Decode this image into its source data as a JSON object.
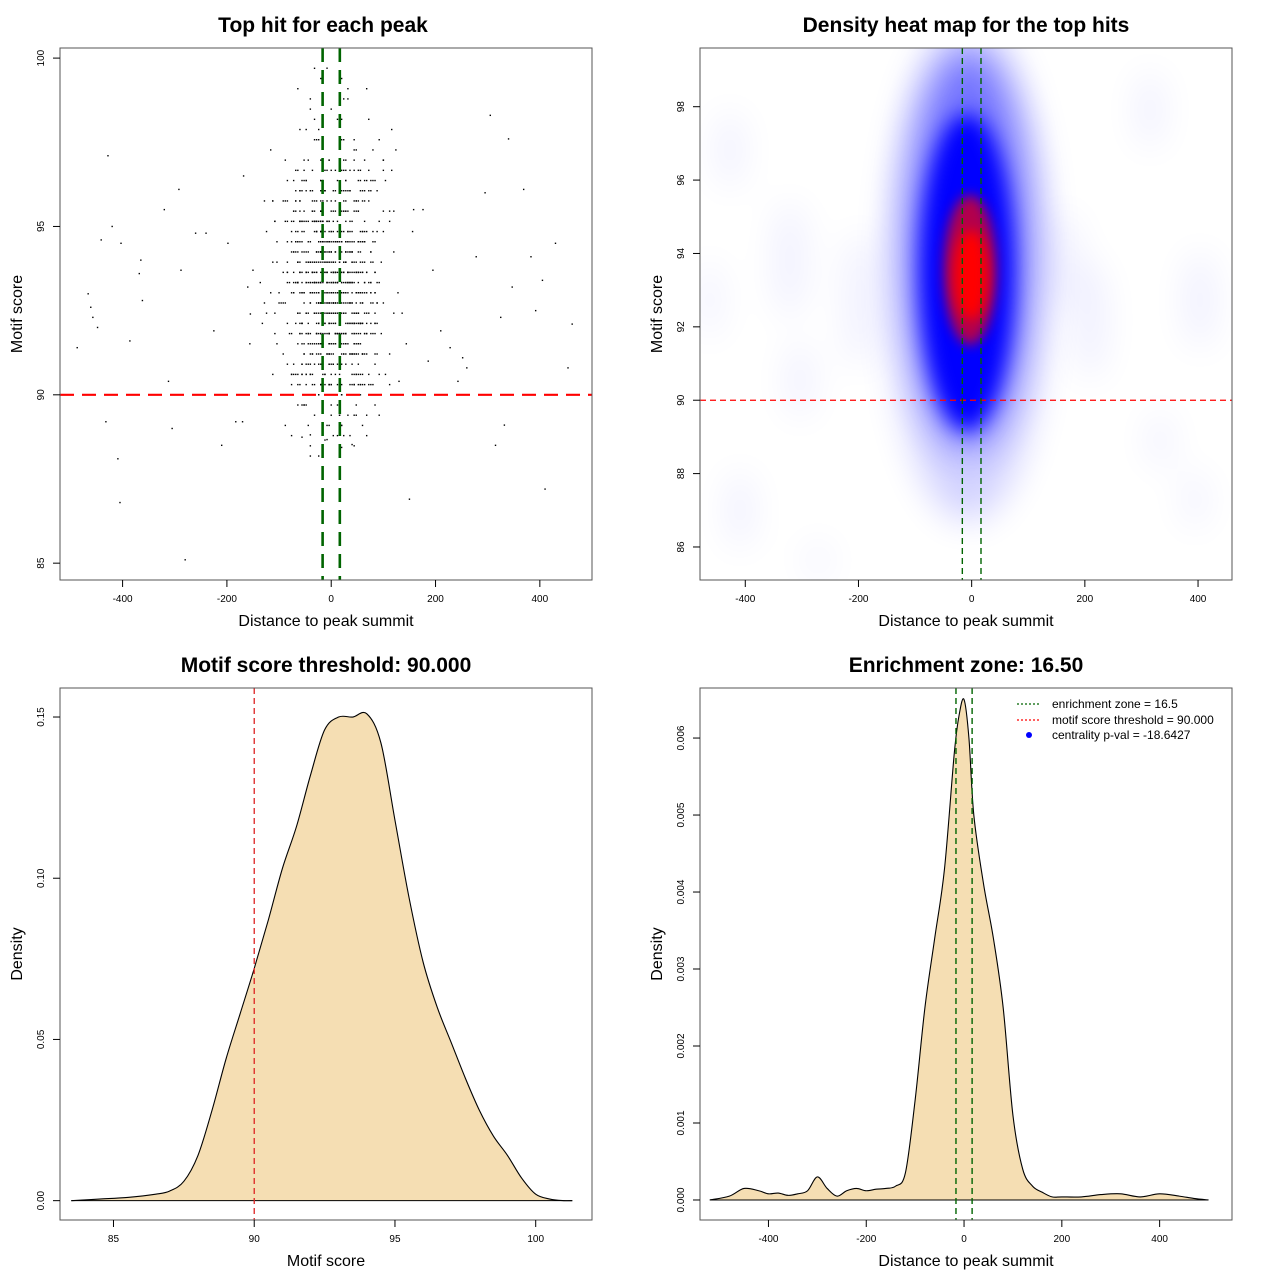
{
  "chart_data": [
    {
      "type": "scatter",
      "title": "Top hit for each peak",
      "xlabel": "Distance to peak summit",
      "ylabel": "Motif score",
      "xlim": [
        -520,
        500
      ],
      "ylim": [
        84.5,
        100.3
      ],
      "xticks": [
        "-400",
        "-200",
        "0",
        "200",
        "400"
      ],
      "yticks": [
        "85",
        "90",
        "95",
        "100"
      ],
      "hline": 90,
      "vlines": [
        -16.5,
        16.5
      ],
      "points_approx_count": 1100,
      "outlier_points": [
        [
          -487,
          91.4
        ],
        [
          -466,
          93
        ],
        [
          -461,
          92.6
        ],
        [
          -457,
          92.3
        ],
        [
          -448,
          92
        ],
        [
          -441,
          94.6
        ],
        [
          -432,
          89.2
        ],
        [
          -428,
          97.1
        ],
        [
          -420,
          95
        ],
        [
          -409,
          88.1
        ],
        [
          -405,
          86.8
        ],
        [
          -403,
          94.5
        ],
        [
          -386,
          91.6
        ],
        [
          -368,
          93.6
        ],
        [
          -365,
          94
        ],
        [
          -362,
          92.8
        ],
        [
          -320,
          95.5
        ],
        [
          -312,
          90.4
        ],
        [
          -305,
          89
        ],
        [
          -300,
          90
        ],
        [
          -292,
          96.1
        ],
        [
          -288,
          93.7
        ],
        [
          -280,
          85.1
        ],
        [
          -260,
          94.8
        ],
        [
          -240,
          94.8
        ],
        [
          -225,
          91.9
        ],
        [
          -210,
          88.5
        ],
        [
          -198,
          94.5
        ],
        [
          -183,
          89.2
        ],
        [
          -170,
          89.2
        ],
        [
          -168,
          96.5
        ],
        [
          -160,
          93.2
        ],
        [
          -155,
          92.4
        ],
        [
          -150,
          93.7
        ],
        [
          130,
          90.4
        ],
        [
          150,
          86.9
        ],
        [
          158,
          95.5
        ],
        [
          176,
          95.5
        ],
        [
          186,
          91
        ],
        [
          195,
          93.7
        ],
        [
          210,
          91.9
        ],
        [
          228,
          91.4
        ],
        [
          243,
          90.4
        ],
        [
          252,
          91.1
        ],
        [
          260,
          90.8
        ],
        [
          278,
          94.1
        ],
        [
          295,
          96
        ],
        [
          305,
          98.3
        ],
        [
          315,
          88.5
        ],
        [
          325,
          92.3
        ],
        [
          332,
          89.1
        ],
        [
          340,
          97.6
        ],
        [
          347,
          93.2
        ],
        [
          369,
          96.1
        ],
        [
          383,
          94.1
        ],
        [
          392,
          92.5
        ],
        [
          405,
          93.4
        ],
        [
          410,
          87.2
        ],
        [
          430,
          94.5
        ],
        [
          454,
          90.8
        ],
        [
          462,
          92.1
        ]
      ]
    },
    {
      "type": "heatmap",
      "title": "Density heat map for the top hits",
      "xlabel": "Distance to peak summit",
      "ylabel": "Motif score",
      "xlim": [
        -480,
        460
      ],
      "ylim": [
        85.1,
        99.6
      ],
      "xticks": [
        "-400",
        "-200",
        "0",
        "200",
        "400"
      ],
      "yticks": [
        "86",
        "88",
        "90",
        "92",
        "94",
        "96",
        "98"
      ],
      "hline": 90,
      "vlines": [
        -16.5,
        16.5
      ],
      "colors": {
        "low": "#ffffff",
        "mid": "#0000ff",
        "high": "#ff0000"
      },
      "density_peak": {
        "x": 5,
        "y": 93.3
      }
    },
    {
      "type": "area",
      "title": "Motif score threshold: 90.000",
      "xlabel": "Motif score",
      "ylabel": "Density",
      "xlim": [
        83.1,
        102.0
      ],
      "ylim": [
        -0.006,
        0.159
      ],
      "xticks": [
        "85",
        "90",
        "95",
        "100"
      ],
      "yticks": [
        "0.00",
        "0.05",
        "0.10",
        "0.15"
      ],
      "vline": 90,
      "fill_color": "#f5deb3",
      "x": [
        83.5,
        84.5,
        85.5,
        86.5,
        87.0,
        87.5,
        88.0,
        88.5,
        89.0,
        89.5,
        90.0,
        90.5,
        91.0,
        91.5,
        92.0,
        92.5,
        93.0,
        93.5,
        94.0,
        94.5,
        95.0,
        95.5,
        96.0,
        96.5,
        97.0,
        97.5,
        98.0,
        98.5,
        99.0,
        99.5,
        100.0,
        100.5,
        101.0,
        101.3
      ],
      "y": [
        0.0,
        0.0005,
        0.001,
        0.002,
        0.003,
        0.006,
        0.014,
        0.028,
        0.044,
        0.058,
        0.072,
        0.087,
        0.103,
        0.116,
        0.132,
        0.146,
        0.15,
        0.15,
        0.151,
        0.142,
        0.118,
        0.094,
        0.074,
        0.06,
        0.049,
        0.038,
        0.028,
        0.02,
        0.014,
        0.007,
        0.002,
        0.0005,
        0.0,
        0.0
      ]
    },
    {
      "type": "area",
      "title": "Enrichment zone: 16.50",
      "xlabel": "Distance to peak summit",
      "ylabel": "Density",
      "xlim": [
        -540,
        548
      ],
      "ylim": [
        -0.00026,
        0.00665
      ],
      "xticks": [
        "-400",
        "-200",
        "0",
        "200",
        "400"
      ],
      "yticks": [
        "0.000",
        "0.001",
        "0.002",
        "0.003",
        "0.004",
        "0.005",
        "0.006"
      ],
      "vlines": [
        -16.5,
        16.5
      ],
      "fill_color": "#f5deb3",
      "legend": {
        "position": "top-right",
        "entries": [
          {
            "label": "enrichment zone = 16.5",
            "color": "#006400",
            "style": "dotted-line"
          },
          {
            "label": "motif score threshold = 90.000",
            "color": "#ff0000",
            "style": "dotted-line"
          },
          {
            "label": "centrality p-val = -18.6427",
            "color": "#0000ff",
            "style": "dot"
          }
        ]
      },
      "x": [
        -520,
        -480,
        -450,
        -420,
        -400,
        -380,
        -360,
        -340,
        -320,
        -300,
        -280,
        -260,
        -240,
        -220,
        -200,
        -180,
        -160,
        -140,
        -120,
        -100,
        -80,
        -60,
        -40,
        -20,
        -10,
        0,
        10,
        20,
        40,
        60,
        80,
        100,
        120,
        140,
        160,
        180,
        200,
        240,
        280,
        320,
        360,
        400,
        440,
        470,
        500
      ],
      "y": [
        0.0,
        5e-05,
        0.00015,
        0.00012,
        8e-05,
        9e-05,
        6e-05,
        8e-05,
        0.00012,
        0.0003,
        0.00015,
        5e-05,
        0.00012,
        0.00015,
        0.00012,
        0.00014,
        0.00015,
        0.00018,
        0.00035,
        0.0013,
        0.0025,
        0.0034,
        0.0043,
        0.0058,
        0.0063,
        0.0065,
        0.006,
        0.005,
        0.0041,
        0.0034,
        0.0025,
        0.0011,
        0.0004,
        0.00018,
        0.0001,
        4e-05,
        4e-05,
        4e-05,
        7e-05,
        8e-05,
        4e-05,
        8e-05,
        5e-05,
        2e-05,
        0.0
      ]
    }
  ]
}
